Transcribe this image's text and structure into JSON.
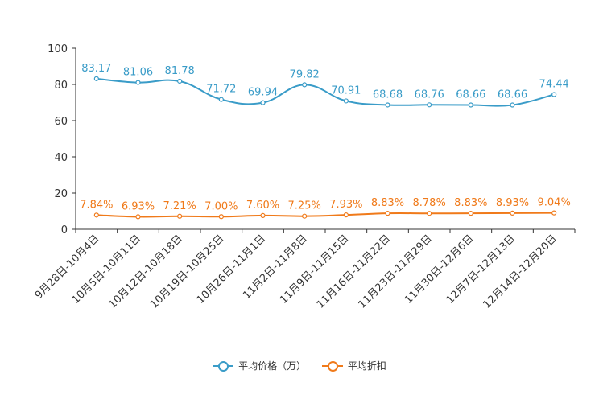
{
  "chart_data": {
    "type": "line",
    "categories": [
      "9月28日-10月4日",
      "10月5日-10月11日",
      "10月12日-10月18日",
      "10月19日-10月25日",
      "10月26日-11月1日",
      "11月2日-11月8日",
      "11月9日-11月15日",
      "11月16日-11月22日",
      "11月23日-11月29日",
      "11月30日-12月6日",
      "12月7日-12月13日",
      "12月14日-12月20日"
    ],
    "ylim": [
      0,
      100
    ],
    "yticks": [
      "0",
      "20",
      "40",
      "60",
      "80",
      "100"
    ],
    "series": [
      {
        "name": "平均价格（万）",
        "color": "#3a9cc8",
        "values": [
          83.17,
          81.06,
          81.78,
          71.72,
          69.94,
          79.82,
          70.91,
          68.68,
          68.76,
          68.66,
          68.66,
          74.44
        ],
        "labels": [
          "83.17",
          "81.06",
          "81.78",
          "71.72",
          "69.94",
          "79.82",
          "70.91",
          "68.68",
          "68.76",
          "68.66",
          "68.66",
          "74.44"
        ]
      },
      {
        "name": "平均折扣",
        "color": "#f07a1a",
        "values": [
          7.84,
          6.93,
          7.21,
          7.0,
          7.6,
          7.25,
          7.93,
          8.83,
          8.78,
          8.83,
          8.93,
          9.04
        ],
        "labels": [
          "7.84%",
          "6.93%",
          "7.21%",
          "7.00%",
          "7.60%",
          "7.25%",
          "7.93%",
          "8.83%",
          "8.78%",
          "8.83%",
          "8.93%",
          "9.04%"
        ]
      }
    ],
    "legend": [
      "平均价格（万）",
      "平均折扣"
    ],
    "legend_position": "bottom",
    "grid": false
  }
}
